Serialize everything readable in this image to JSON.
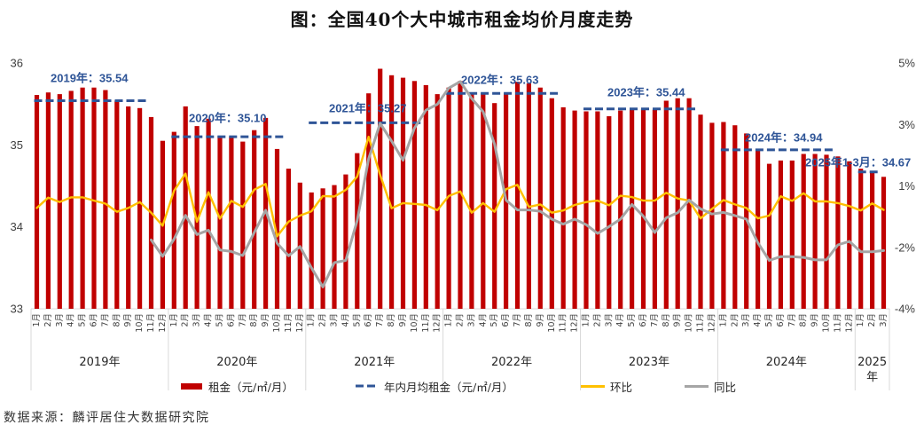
{
  "source": "数据来源：麟评居住大数据研究院",
  "chart_data": {
    "type": "bar",
    "title": "图：全国40个大中城市租金均价月度走势",
    "xlabel": "",
    "ylabel": "",
    "grid": false,
    "legend": {
      "position": "bottom"
    },
    "x_groups": [
      {
        "label": "2019年",
        "months": [
          "1月",
          "2月",
          "3月",
          "4月",
          "5月",
          "6月",
          "7月",
          "8月",
          "9月",
          "10月",
          "11月",
          "12月"
        ]
      },
      {
        "label": "2020年",
        "months": [
          "1月",
          "2月",
          "3月",
          "4月",
          "5月",
          "6月",
          "7月",
          "8月",
          "9月",
          "10月",
          "11月",
          "12月"
        ]
      },
      {
        "label": "2021年",
        "months": [
          "1月",
          "2月",
          "3月",
          "4月",
          "5月",
          "6月",
          "7月",
          "8月",
          "9月",
          "10月",
          "11月",
          "12月"
        ]
      },
      {
        "label": "2022年",
        "months": [
          "1月",
          "2月",
          "3月",
          "4月",
          "5月",
          "6月",
          "7月",
          "8月",
          "9月",
          "10月",
          "11月",
          "12月"
        ]
      },
      {
        "label": "2023年",
        "months": [
          "1月",
          "2月",
          "3月",
          "4月",
          "5月",
          "6月",
          "7月",
          "8月",
          "9月",
          "10月",
          "11月",
          "12月"
        ]
      },
      {
        "label": "2024年",
        "months": [
          "1月",
          "2月",
          "3月",
          "4月",
          "5月",
          "6月",
          "7月",
          "8月",
          "9月",
          "10月",
          "11月",
          "12月"
        ]
      },
      {
        "label": "2025年",
        "months": [
          "1月",
          "2月",
          "3月"
        ]
      }
    ],
    "y_left": {
      "min": 33,
      "max": 36,
      "ticks": [
        33,
        34,
        35,
        36
      ],
      "tick_labels": [
        "33",
        "34",
        "35",
        "36"
      ]
    },
    "y_right": {
      "min": -4,
      "max": 5,
      "unit": "%",
      "ticks": [
        -4,
        -1.75,
        0.5,
        2.75,
        5
      ],
      "tick_labels": [
        "-4%",
        "-2%",
        "1%",
        "3%",
        "5%"
      ]
    },
    "series": [
      {
        "name": "租金（元/㎡/月）",
        "type": "bar",
        "axis": "left",
        "color": "#C00000",
        "values": [
          35.61,
          35.64,
          35.62,
          35.66,
          35.7,
          35.7,
          35.67,
          35.54,
          35.47,
          35.45,
          35.34,
          35.05,
          35.16,
          35.47,
          35.23,
          35.32,
          35.11,
          35.1,
          35.04,
          35.18,
          35.33,
          34.95,
          34.71,
          34.54,
          34.42,
          34.47,
          34.51,
          34.64,
          34.9,
          35.63,
          35.93,
          35.85,
          35.82,
          35.78,
          35.73,
          35.62,
          35.7,
          35.78,
          35.63,
          35.63,
          35.51,
          35.63,
          35.77,
          35.75,
          35.7,
          35.57,
          35.46,
          35.42,
          35.41,
          35.41,
          35.35,
          35.42,
          35.44,
          35.44,
          35.43,
          35.54,
          35.57,
          35.57,
          35.37,
          35.27,
          35.28,
          35.24,
          35.14,
          34.94,
          34.77,
          34.81,
          34.81,
          34.89,
          34.89,
          34.88,
          34.86,
          34.8,
          34.71,
          34.68,
          34.61
        ]
      },
      {
        "name": "年内月均租金（元/㎡/月）",
        "type": "dashed-line",
        "axis": "left",
        "color": "#2F5597",
        "segments": [
          {
            "label": "2019年：35.54",
            "value": 35.54,
            "start": 0,
            "end": 11
          },
          {
            "label": "2020年：35.10",
            "value": 35.1,
            "start": 12,
            "end": 23
          },
          {
            "label": "2021年：35.27",
            "value": 35.27,
            "start": 24,
            "end": 35
          },
          {
            "label": "2022年：35.63",
            "value": 35.63,
            "start": 36,
            "end": 47
          },
          {
            "label": "2023年：35.44",
            "value": 35.44,
            "start": 48,
            "end": 59
          },
          {
            "label": "2024年：34.94",
            "value": 34.94,
            "start": 60,
            "end": 71
          },
          {
            "label": "2025年1-3月：34.67",
            "value": 34.67,
            "start": 72,
            "end": 74
          }
        ]
      },
      {
        "name": "环比",
        "type": "line",
        "axis": "right",
        "color": "#FFC000",
        "values": [
          -0.31,
          0.07,
          -0.09,
          0.08,
          0.08,
          -0.04,
          -0.15,
          -0.45,
          -0.31,
          -0.09,
          -0.48,
          -0.96,
          0.32,
          0.95,
          -0.81,
          0.27,
          -0.7,
          -0.05,
          -0.27,
          0.36,
          0.57,
          -1.35,
          -0.81,
          -0.59,
          -0.43,
          0.13,
          0.11,
          0.35,
          0.84,
          2.3,
          0.9,
          -0.32,
          -0.13,
          -0.16,
          -0.2,
          -0.39,
          0.13,
          0.3,
          -0.48,
          -0.13,
          -0.45,
          0.38,
          0.54,
          -0.27,
          -0.18,
          -0.48,
          -0.4,
          -0.2,
          -0.09,
          -0.04,
          -0.21,
          0.14,
          0.09,
          -0.04,
          -0.04,
          0.25,
          0.04,
          -0.04,
          -0.69,
          -0.34,
          -0.02,
          -0.18,
          -0.31,
          -0.69,
          -0.59,
          0.12,
          -0.05,
          0.23,
          -0.07,
          -0.07,
          -0.13,
          -0.24,
          -0.4,
          -0.14,
          -0.38
        ]
      },
      {
        "name": "同比",
        "type": "line",
        "axis": "right",
        "color": "#A5A5A5",
        "values": [
          null,
          null,
          null,
          null,
          null,
          null,
          null,
          null,
          null,
          null,
          -1.48,
          -2.08,
          -1.45,
          -0.58,
          -1.28,
          -1.12,
          -1.85,
          -1.9,
          -2.05,
          -1.21,
          -0.39,
          -1.6,
          -2.06,
          -1.72,
          -2.5,
          -3.2,
          -2.31,
          -2.23,
          -0.77,
          1.49,
          2.79,
          2.14,
          1.44,
          2.62,
          3.27,
          3.49,
          4.08,
          4.32,
          3.7,
          3.22,
          2.03,
          -0.02,
          -0.38,
          -0.38,
          -0.43,
          -0.72,
          -0.9,
          -0.72,
          -0.92,
          -1.24,
          -0.99,
          -0.72,
          -0.18,
          -0.61,
          -1.21,
          -0.67,
          -0.48,
          -0.02,
          -0.34,
          -0.53,
          -0.47,
          -0.59,
          -0.72,
          -1.58,
          -2.23,
          -2.09,
          -2.09,
          -2.12,
          -2.21,
          -2.21,
          -1.66,
          -1.53,
          -1.91,
          -1.91,
          -1.87
        ]
      }
    ]
  }
}
